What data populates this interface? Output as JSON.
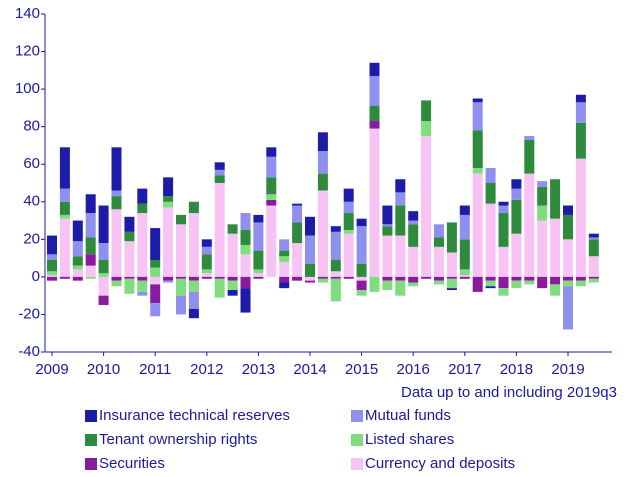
{
  "chart_data": {
    "type": "bar",
    "stacked": true,
    "note": "Data up to and including 2019q3",
    "categories": [
      "2009",
      null,
      null,
      null,
      "2010",
      null,
      null,
      null,
      "2011",
      null,
      null,
      null,
      "2012",
      null,
      null,
      null,
      "2013",
      null,
      null,
      null,
      "2014",
      null,
      null,
      null,
      "2015",
      null,
      null,
      null,
      "2016",
      null,
      null,
      null,
      "2017",
      null,
      null,
      null,
      "2018",
      null,
      null,
      null,
      "2019",
      null,
      null
    ],
    "series": [
      {
        "name": "Currency and deposits",
        "color": "#f7c3f5",
        "values": [
          1,
          31,
          4,
          6,
          -10,
          36,
          19,
          34,
          -4,
          37,
          28,
          34,
          2,
          50,
          23,
          12,
          2,
          38,
          8,
          18,
          -2,
          46,
          3,
          23,
          -2,
          79,
          22,
          22,
          16,
          75,
          16,
          13,
          1,
          55,
          39,
          16,
          23,
          55,
          30,
          31,
          20,
          63,
          11
        ]
      },
      {
        "name": "Securities",
        "color": "#8a1a9e",
        "values": [
          -2,
          -1,
          -2,
          6,
          -5,
          -2,
          -1,
          -2,
          -10,
          -2,
          -1,
          -2,
          -1,
          -1,
          -2,
          -6,
          -1,
          3,
          -3,
          -2,
          -1,
          -1,
          -1,
          -1,
          -5,
          4,
          -2,
          -2,
          -3,
          -1,
          -2,
          -1,
          -1,
          -8,
          -2,
          -6,
          -2,
          -2,
          -6,
          -4,
          -2,
          -2,
          -1
        ]
      },
      {
        "name": "Listed shares",
        "color": "#7fdc7f",
        "values": [
          2,
          2,
          2,
          -1,
          2,
          -3,
          -8,
          -6,
          5,
          3,
          -9,
          -6,
          2,
          -10,
          -5,
          5,
          2,
          3,
          3,
          0,
          0,
          -2,
          -12,
          2,
          -3,
          -8,
          -5,
          -8,
          -2,
          8,
          -2,
          -5,
          3,
          3,
          -3,
          -4,
          -4,
          -2,
          8,
          -6,
          -3,
          -3,
          -2
        ]
      },
      {
        "name": "Tenant ownership rights",
        "color": "#2e8b3e",
        "values": [
          6,
          7,
          5,
          9,
          7,
          7,
          5,
          5,
          4,
          3,
          5,
          6,
          8,
          4,
          5,
          8,
          10,
          9,
          3,
          11,
          7,
          9,
          6,
          9,
          7,
          8,
          5,
          16,
          12,
          11,
          5,
          16,
          16,
          20,
          11,
          18,
          18,
          18,
          10,
          21,
          13,
          19,
          9
        ]
      },
      {
        "name": "Mutual funds",
        "color": "#8f8ff0",
        "values": [
          3,
          7,
          8,
          13,
          9,
          3,
          0,
          -2,
          -7,
          -1,
          -10,
          -9,
          4,
          3,
          0,
          9,
          15,
          11,
          6,
          9,
          15,
          12,
          15,
          6,
          20,
          16,
          1,
          7,
          2,
          0,
          7,
          0,
          13,
          15,
          8,
          4,
          6,
          2,
          3,
          0,
          -23,
          11,
          1
        ]
      },
      {
        "name": "Insurance technical reserves",
        "color": "#1c1ca8",
        "values": [
          10,
          22,
          11,
          10,
          20,
          23,
          8,
          8,
          17,
          10,
          0,
          -5,
          4,
          4,
          -3,
          -13,
          4,
          5,
          -3,
          1,
          10,
          10,
          3,
          7,
          4,
          7,
          10,
          7,
          5,
          0,
          0,
          -1,
          5,
          2,
          -1,
          2,
          5,
          0,
          0,
          0,
          5,
          4,
          2
        ]
      }
    ],
    "ylim": [
      -40,
      140
    ],
    "yticks": [
      -40,
      -20,
      0,
      20,
      40,
      60,
      80,
      100,
      120,
      140
    ]
  }
}
